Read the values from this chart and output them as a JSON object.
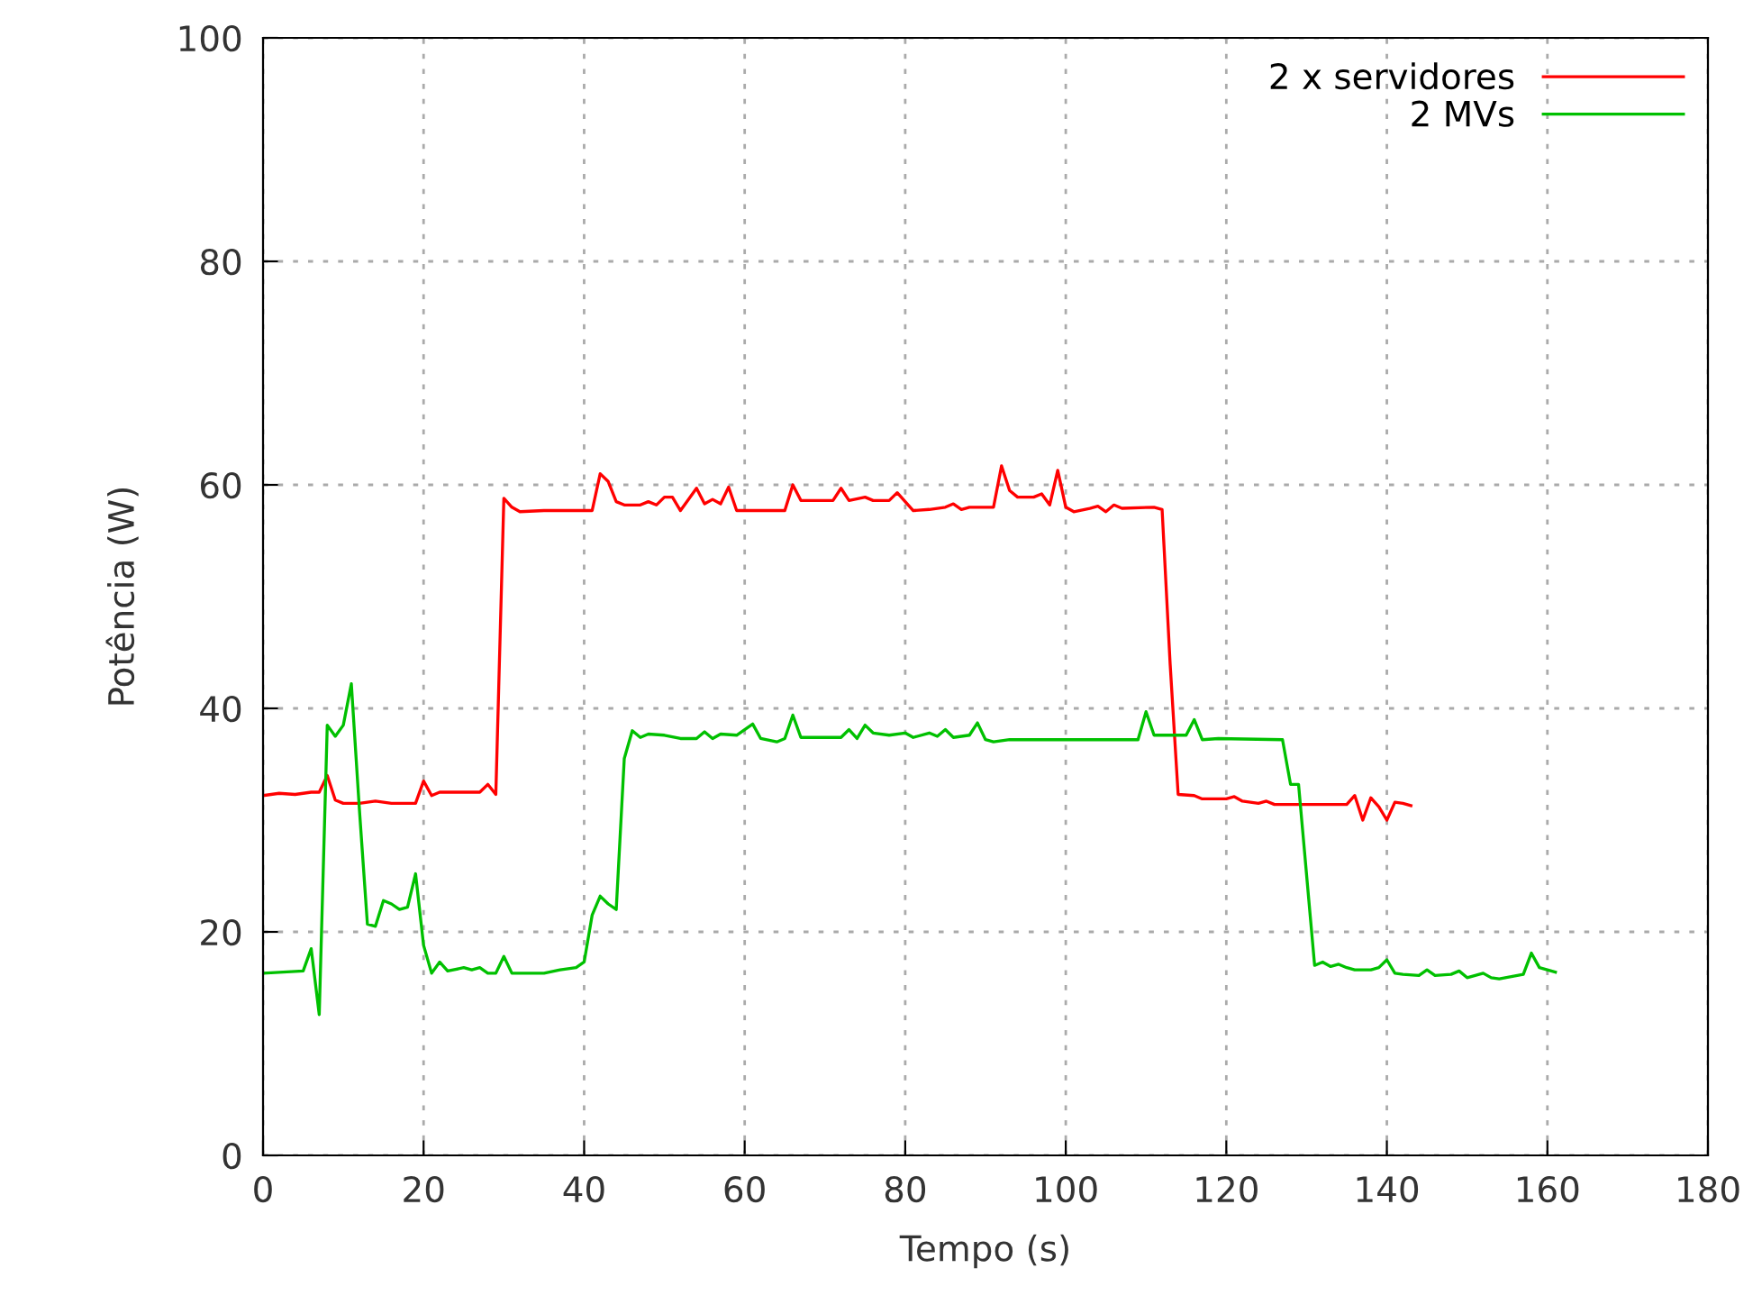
{
  "chart_data": {
    "type": "line",
    "xlabel": "Tempo (s)",
    "ylabel": "Potência (W)",
    "xlim": [
      0,
      180
    ],
    "xticks": [
      0,
      20,
      40,
      60,
      80,
      100,
      120,
      140,
      160,
      180
    ],
    "ylim": [
      0,
      100
    ],
    "yticks": [
      0,
      20,
      40,
      60,
      80,
      100
    ],
    "grid": true,
    "legend": "top right",
    "line_style": "solid",
    "series": [
      {
        "name": "2 x servidores",
        "color": "#ff0000",
        "x": [
          0,
          2,
          4,
          6,
          7,
          8,
          9,
          10,
          12,
          14,
          16,
          19,
          20,
          21,
          22,
          27,
          28,
          29,
          30,
          31,
          32,
          35,
          41,
          42,
          43,
          44,
          45,
          47,
          48,
          49,
          50,
          51,
          52,
          54,
          55,
          56,
          57,
          58,
          59,
          65,
          66,
          67,
          71,
          72,
          73,
          75,
          76,
          78,
          79,
          81,
          83,
          85,
          86,
          87,
          88,
          91,
          92,
          93,
          94,
          96,
          97,
          98,
          99,
          100,
          101,
          103,
          104,
          105,
          106,
          107,
          111,
          112,
          113,
          114,
          116,
          117,
          120,
          121,
          122,
          124,
          125,
          126,
          135,
          136,
          137,
          138,
          139,
          140,
          141,
          142,
          143
        ],
        "values": [
          32.2,
          32.4,
          32.3,
          32.5,
          32.5,
          34.0,
          31.8,
          31.5,
          31.5,
          31.7,
          31.5,
          31.5,
          33.5,
          32.2,
          32.5,
          32.5,
          33.2,
          32.3,
          58.8,
          58.0,
          57.6,
          57.7,
          57.7,
          61.0,
          60.3,
          58.5,
          58.2,
          58.2,
          58.5,
          58.2,
          58.9,
          58.9,
          57.7,
          59.7,
          58.3,
          58.7,
          58.3,
          59.8,
          57.7,
          57.7,
          60.0,
          58.6,
          58.6,
          59.7,
          58.6,
          58.9,
          58.6,
          58.6,
          59.3,
          57.7,
          57.8,
          58.0,
          58.3,
          57.8,
          58.0,
          58.0,
          61.7,
          59.5,
          58.9,
          58.9,
          59.2,
          58.2,
          61.3,
          58.0,
          57.6,
          57.9,
          58.1,
          57.6,
          58.2,
          57.9,
          58.0,
          57.8,
          44.0,
          32.3,
          32.2,
          31.9,
          31.9,
          32.1,
          31.7,
          31.5,
          31.7,
          31.4,
          31.4,
          32.2,
          30.0,
          32.0,
          31.2,
          30.0,
          31.6,
          31.5,
          31.3
        ]
      },
      {
        "name": "2 MVs",
        "color": "#00c000",
        "x": [
          0,
          5,
          6,
          7,
          8,
          9,
          10,
          11,
          12,
          13,
          14,
          15,
          16,
          17,
          18,
          19,
          20,
          21,
          22,
          23,
          25,
          26,
          27,
          28,
          29,
          30,
          31,
          35,
          37,
          39,
          40,
          41,
          42,
          43,
          44,
          45,
          46,
          47,
          48,
          50,
          52,
          54,
          55,
          56,
          57,
          59,
          61,
          62,
          64,
          65,
          66,
          67,
          72,
          73,
          74,
          75,
          76,
          78,
          80,
          81,
          83,
          84,
          85,
          86,
          88,
          89,
          90,
          91,
          93,
          109,
          110,
          111,
          115,
          116,
          117,
          119,
          127,
          128,
          129,
          131,
          132,
          133,
          134,
          135,
          136,
          138,
          139,
          140,
          141,
          142,
          144,
          145,
          146,
          148,
          149,
          150,
          152,
          153,
          154,
          157,
          158,
          159,
          161
        ],
        "values": [
          16.3,
          16.5,
          18.5,
          12.6,
          38.5,
          37.5,
          38.5,
          42.2,
          31.0,
          20.7,
          20.5,
          22.8,
          22.5,
          22.0,
          22.2,
          25.2,
          18.8,
          16.3,
          17.3,
          16.5,
          16.8,
          16.6,
          16.8,
          16.3,
          16.3,
          17.8,
          16.3,
          16.3,
          16.6,
          16.8,
          17.3,
          21.5,
          23.2,
          22.5,
          22.0,
          35.5,
          38.0,
          37.4,
          37.7,
          37.6,
          37.3,
          37.3,
          37.9,
          37.3,
          37.7,
          37.6,
          38.6,
          37.3,
          37.0,
          37.3,
          39.4,
          37.4,
          37.4,
          38.1,
          37.3,
          38.5,
          37.8,
          37.6,
          37.8,
          37.4,
          37.8,
          37.5,
          38.1,
          37.4,
          37.6,
          38.7,
          37.2,
          37.0,
          37.2,
          37.2,
          39.7,
          37.6,
          37.6,
          39.0,
          37.2,
          37.3,
          37.2,
          33.2,
          33.2,
          17.0,
          17.3,
          16.9,
          17.1,
          16.8,
          16.6,
          16.6,
          16.8,
          17.5,
          16.3,
          16.2,
          16.1,
          16.6,
          16.1,
          16.2,
          16.5,
          15.9,
          16.3,
          15.9,
          15.8,
          16.2,
          18.1,
          16.8,
          16.4
        ]
      }
    ]
  }
}
